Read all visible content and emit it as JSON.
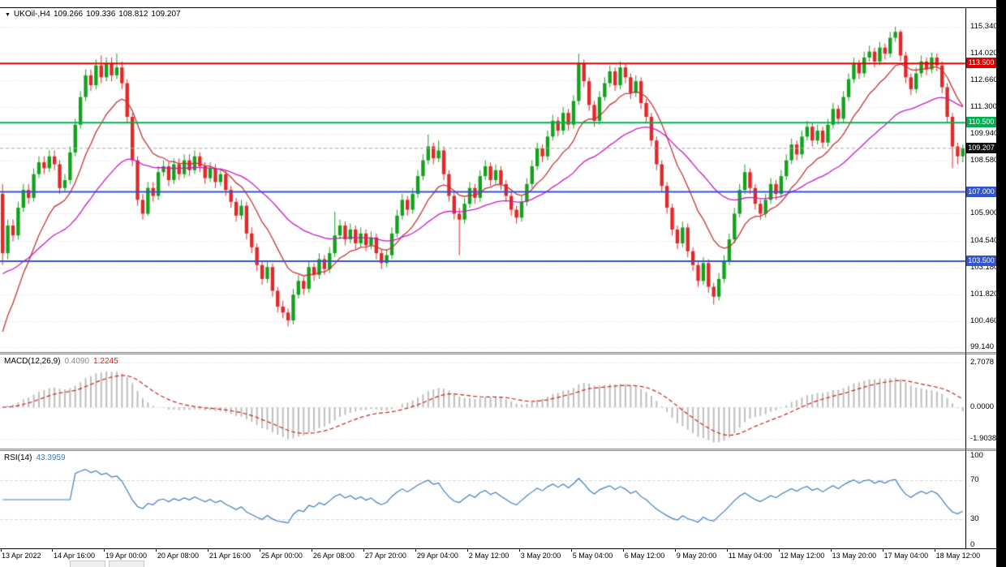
{
  "header": {
    "symbol_label": "UKOil-,H4",
    "ohlc": {
      "open": "109.266",
      "high": "109.336",
      "low": "108.812",
      "close": "109.207"
    }
  },
  "panel_labels": {
    "macd_label": "MACD(12,26,9)",
    "macd_main": "0.4090",
    "macd_signal": "1.2245",
    "rsi_label": "RSI(14)",
    "rsi_value": "43.3959"
  },
  "colors": {
    "candle_up": "#12a31c",
    "candle_down": "#e22828",
    "grid": "#d6d6d6",
    "macd_hist": "#bdbdbd",
    "macd_signal": "#cc2222",
    "rsi_line": "#3f7cc0",
    "current_badge": "#101010",
    "current_line": "#a8a8a8"
  },
  "chart_data": {
    "type": "candlestick",
    "symbol": "UKOil-",
    "timeframe": "H4",
    "price_axis": {
      "min": 98.9,
      "max": 116.3,
      "values": [
        115.34,
        114.02,
        112.66,
        111.3,
        109.94,
        108.58,
        105.9,
        104.54,
        103.18,
        101.82,
        100.46,
        99.14
      ],
      "labels": [
        "115.340",
        "114.020",
        "112.660",
        "111.300",
        "109.940",
        "108.580",
        "105.900",
        "104.540",
        "103.180",
        "101.820",
        "100.460",
        "99.140"
      ]
    },
    "extra_gridlines": [
      107.22
    ],
    "hlines": [
      {
        "price": 113.5,
        "color": "#e00000",
        "label": "113.500"
      },
      {
        "price": 110.5,
        "color": "#00b050",
        "label": "110.500"
      },
      {
        "price": 107.0,
        "color": "#3355cc",
        "label": "107.000"
      },
      {
        "price": 103.5,
        "color": "#3355cc",
        "label": "103.500"
      }
    ],
    "current_price": 109.207,
    "current_price_label": "109.207",
    "moving_averages": [
      {
        "period": 12,
        "seed": 99.2,
        "color": "#c83232"
      },
      {
        "period": 35,
        "seed": 102.8,
        "color": "#c818c8"
      }
    ],
    "macd": {
      "fast": 12,
      "slow": 26,
      "signal_period": 9,
      "axis": {
        "values": [
          2.7078,
          0,
          -1.9038
        ],
        "labels": [
          "2.7078",
          "0.0000",
          "-1.9038"
        ],
        "range": [
          -2.5,
          3.2
        ]
      }
    },
    "rsi": {
      "period": 14,
      "axis": {
        "values": [
          100,
          70,
          30,
          0
        ],
        "labels": [
          "100",
          "70",
          "30",
          "0"
        ],
        "levels": [
          70,
          30
        ]
      }
    },
    "time_axis": {
      "label_step": 10,
      "labels": [
        "13 Apr 2022",
        "14 Apr 16:00",
        "19 Apr 00:00",
        "20 Apr 08:00",
        "21 Apr 16:00",
        "25 Apr 00:00",
        "26 Apr 08:00",
        "27 Apr 20:00",
        "29 Apr 04:00",
        "2 May 12:00",
        "3 May 20:00",
        "5 May 04:00",
        "6 May 12:00",
        "9 May 20:00",
        "11 May 04:00",
        "12 May 12:00",
        "13 May 20:00",
        "17 May 04:00",
        "18 May 12:00"
      ]
    },
    "candles": [
      [
        106.9,
        107.4,
        103.3,
        103.9
      ],
      [
        103.9,
        105.6,
        103.6,
        105.3
      ],
      [
        105.3,
        105.6,
        104.5,
        104.8
      ],
      [
        104.8,
        106.5,
        104.6,
        106.2
      ],
      [
        106.2,
        107.4,
        106.0,
        107.1
      ],
      [
        107.1,
        107.4,
        106.4,
        106.7
      ],
      [
        106.7,
        108.2,
        106.5,
        107.9
      ],
      [
        107.9,
        108.8,
        107.7,
        108.5
      ],
      [
        108.5,
        108.8,
        107.9,
        108.2
      ],
      [
        108.2,
        109.1,
        108.0,
        108.8
      ],
      [
        108.8,
        109.1,
        108.1,
        108.4
      ],
      [
        108.4,
        108.6,
        106.9,
        107.2
      ],
      [
        107.2,
        107.9,
        107.0,
        107.6
      ],
      [
        107.6,
        109.3,
        107.4,
        109.0
      ],
      [
        109.0,
        110.7,
        108.8,
        110.4
      ],
      [
        110.4,
        112.1,
        110.2,
        111.8
      ],
      [
        111.8,
        113.2,
        111.6,
        112.9
      ],
      [
        112.9,
        113.2,
        112.1,
        112.4
      ],
      [
        112.4,
        113.7,
        112.2,
        113.4
      ],
      [
        113.4,
        113.9,
        112.5,
        112.8
      ],
      [
        112.8,
        113.8,
        112.6,
        113.5
      ],
      [
        113.5,
        113.8,
        112.6,
        112.9
      ],
      [
        112.9,
        114.0,
        112.7,
        113.3
      ],
      [
        113.3,
        113.6,
        112.2,
        112.5
      ],
      [
        112.5,
        112.7,
        110.5,
        110.8
      ],
      [
        110.8,
        111.0,
        108.3,
        108.6
      ],
      [
        108.6,
        108.8,
        106.3,
        106.6
      ],
      [
        106.6,
        106.9,
        105.6,
        105.9
      ],
      [
        105.9,
        107.5,
        105.8,
        107.2
      ],
      [
        107.2,
        107.5,
        106.5,
        106.8
      ],
      [
        106.8,
        108.3,
        106.6,
        108.0
      ],
      [
        108.0,
        108.6,
        107.8,
        108.3
      ],
      [
        108.3,
        108.5,
        107.3,
        107.6
      ],
      [
        107.6,
        108.7,
        107.4,
        108.4
      ],
      [
        108.4,
        108.7,
        107.6,
        107.9
      ],
      [
        107.9,
        108.9,
        107.7,
        108.6
      ],
      [
        108.6,
        108.9,
        107.8,
        108.1
      ],
      [
        108.1,
        109.1,
        107.9,
        108.8
      ],
      [
        108.8,
        109.0,
        108.0,
        108.3
      ],
      [
        108.3,
        108.5,
        107.4,
        107.7
      ],
      [
        107.7,
        108.5,
        107.5,
        108.2
      ],
      [
        108.2,
        108.4,
        107.2,
        107.5
      ],
      [
        107.5,
        108.2,
        107.3,
        107.9
      ],
      [
        107.9,
        108.1,
        106.8,
        107.1
      ],
      [
        107.1,
        107.3,
        106.2,
        106.5
      ],
      [
        106.5,
        106.7,
        105.5,
        105.8
      ],
      [
        105.8,
        106.6,
        105.6,
        106.3
      ],
      [
        106.3,
        106.5,
        104.6,
        104.9
      ],
      [
        104.9,
        105.2,
        103.9,
        104.2
      ],
      [
        104.2,
        104.4,
        103.0,
        103.3
      ],
      [
        103.3,
        103.5,
        102.3,
        102.6
      ],
      [
        102.6,
        103.5,
        102.4,
        103.2
      ],
      [
        103.2,
        103.4,
        101.7,
        102.0
      ],
      [
        102.0,
        102.2,
        100.9,
        101.2
      ],
      [
        101.2,
        101.5,
        100.6,
        100.9
      ],
      [
        100.9,
        101.1,
        100.2,
        100.5
      ],
      [
        100.5,
        102.1,
        100.3,
        101.8
      ],
      [
        101.8,
        102.8,
        101.6,
        102.5
      ],
      [
        102.5,
        102.7,
        101.8,
        102.1
      ],
      [
        102.1,
        103.5,
        101.9,
        103.2
      ],
      [
        103.2,
        103.4,
        102.5,
        102.8
      ],
      [
        102.8,
        103.9,
        102.6,
        103.6
      ],
      [
        103.6,
        103.8,
        102.8,
        103.1
      ],
      [
        103.1,
        104.2,
        102.9,
        103.9
      ],
      [
        103.9,
        106.0,
        103.7,
        104.8
      ],
      [
        104.8,
        105.6,
        104.6,
        105.3
      ],
      [
        105.3,
        105.5,
        104.3,
        104.6
      ],
      [
        104.6,
        105.4,
        104.4,
        105.1
      ],
      [
        105.1,
        105.3,
        104.1,
        104.4
      ],
      [
        104.4,
        105.2,
        104.2,
        104.9
      ],
      [
        104.9,
        105.1,
        104.0,
        104.3
      ],
      [
        104.3,
        105.0,
        104.1,
        104.7
      ],
      [
        104.7,
        104.9,
        103.6,
        103.9
      ],
      [
        103.9,
        104.1,
        103.1,
        103.4
      ],
      [
        103.4,
        104.1,
        103.2,
        103.8
      ],
      [
        103.8,
        105.2,
        103.6,
        104.9
      ],
      [
        104.9,
        106.1,
        104.7,
        105.8
      ],
      [
        105.8,
        106.9,
        105.6,
        106.6
      ],
      [
        106.6,
        106.8,
        105.8,
        106.1
      ],
      [
        106.1,
        107.2,
        105.9,
        106.9
      ],
      [
        106.9,
        108.1,
        106.7,
        107.8
      ],
      [
        107.8,
        108.9,
        107.6,
        108.6
      ],
      [
        108.6,
        109.9,
        108.4,
        109.3
      ],
      [
        109.3,
        109.5,
        108.4,
        108.7
      ],
      [
        108.7,
        109.6,
        108.5,
        109.1
      ],
      [
        109.1,
        109.3,
        107.6,
        107.9
      ],
      [
        107.9,
        108.1,
        106.5,
        106.8
      ],
      [
        106.8,
        107.0,
        105.6,
        105.9
      ],
      [
        105.9,
        106.2,
        103.8,
        105.6
      ],
      [
        105.6,
        106.7,
        105.4,
        106.4
      ],
      [
        106.4,
        107.5,
        106.2,
        107.2
      ],
      [
        107.2,
        107.4,
        106.4,
        106.7
      ],
      [
        106.7,
        108.1,
        106.5,
        107.8
      ],
      [
        107.8,
        108.6,
        107.6,
        108.3
      ],
      [
        108.3,
        108.5,
        107.3,
        107.6
      ],
      [
        107.6,
        108.4,
        107.4,
        108.1
      ],
      [
        108.1,
        108.3,
        107.1,
        107.4
      ],
      [
        107.4,
        107.6,
        106.5,
        106.8
      ],
      [
        106.8,
        107.0,
        105.8,
        106.1
      ],
      [
        106.1,
        106.3,
        105.4,
        105.7
      ],
      [
        105.7,
        106.8,
        105.5,
        106.5
      ],
      [
        106.5,
        107.7,
        106.3,
        107.4
      ],
      [
        107.4,
        108.6,
        107.2,
        108.3
      ],
      [
        108.3,
        109.5,
        108.1,
        109.2
      ],
      [
        109.2,
        109.4,
        108.5,
        108.8
      ],
      [
        108.8,
        110.1,
        108.6,
        109.8
      ],
      [
        109.8,
        110.9,
        109.6,
        110.6
      ],
      [
        110.6,
        110.8,
        109.8,
        110.1
      ],
      [
        110.1,
        111.3,
        109.9,
        111.0
      ],
      [
        111.0,
        111.2,
        110.1,
        110.4
      ],
      [
        110.4,
        111.9,
        110.2,
        111.6
      ],
      [
        111.6,
        114.0,
        111.4,
        113.5
      ],
      [
        113.5,
        113.7,
        112.3,
        112.6
      ],
      [
        112.6,
        112.8,
        111.1,
        111.4
      ],
      [
        111.4,
        111.6,
        110.3,
        110.6
      ],
      [
        110.6,
        112.1,
        110.4,
        111.8
      ],
      [
        111.8,
        112.8,
        111.6,
        112.5
      ],
      [
        112.5,
        113.4,
        112.3,
        113.1
      ],
      [
        113.1,
        113.3,
        112.1,
        112.4
      ],
      [
        112.4,
        113.6,
        112.2,
        113.3
      ],
      [
        113.3,
        113.5,
        112.5,
        112.8
      ],
      [
        112.8,
        113.0,
        111.7,
        112.0
      ],
      [
        112.0,
        112.9,
        111.8,
        112.6
      ],
      [
        112.6,
        112.8,
        111.2,
        111.5
      ],
      [
        111.5,
        111.7,
        110.5,
        110.8
      ],
      [
        110.8,
        111.0,
        109.3,
        109.6
      ],
      [
        109.6,
        109.8,
        108.1,
        108.4
      ],
      [
        108.4,
        108.6,
        107.0,
        107.3
      ],
      [
        107.3,
        107.5,
        105.9,
        106.2
      ],
      [
        106.2,
        106.4,
        104.8,
        105.1
      ],
      [
        105.1,
        105.3,
        104.1,
        104.4
      ],
      [
        104.4,
        105.5,
        104.2,
        105.2
      ],
      [
        105.2,
        105.4,
        103.7,
        104.0
      ],
      [
        104.0,
        104.2,
        103.0,
        103.3
      ],
      [
        103.3,
        103.5,
        102.2,
        102.5
      ],
      [
        102.5,
        103.7,
        102.3,
        103.4
      ],
      [
        103.4,
        103.6,
        101.9,
        102.2
      ],
      [
        102.2,
        102.4,
        101.3,
        101.7
      ],
      [
        101.7,
        102.9,
        101.5,
        102.6
      ],
      [
        102.6,
        103.8,
        102.4,
        103.5
      ],
      [
        103.5,
        104.9,
        103.3,
        104.6
      ],
      [
        104.6,
        106.2,
        104.4,
        105.9
      ],
      [
        105.9,
        107.4,
        105.7,
        107.1
      ],
      [
        107.1,
        108.4,
        106.9,
        108.0
      ],
      [
        108.0,
        108.2,
        106.9,
        107.2
      ],
      [
        107.2,
        107.4,
        106.1,
        106.4
      ],
      [
        106.4,
        106.6,
        105.6,
        105.9
      ],
      [
        105.9,
        106.9,
        105.7,
        106.6
      ],
      [
        106.6,
        107.7,
        106.4,
        107.4
      ],
      [
        107.4,
        107.6,
        106.6,
        106.9
      ],
      [
        106.9,
        108.1,
        106.7,
        107.8
      ],
      [
        107.8,
        108.9,
        107.6,
        108.6
      ],
      [
        108.6,
        109.7,
        108.4,
        109.4
      ],
      [
        109.4,
        109.6,
        108.6,
        108.9
      ],
      [
        108.9,
        110.1,
        108.7,
        109.8
      ],
      [
        109.8,
        110.6,
        109.6,
        110.3
      ],
      [
        110.3,
        110.5,
        109.3,
        109.6
      ],
      [
        109.6,
        110.4,
        109.4,
        110.1
      ],
      [
        110.1,
        110.3,
        109.2,
        109.5
      ],
      [
        109.5,
        110.7,
        109.3,
        110.4
      ],
      [
        110.4,
        111.5,
        110.2,
        111.2
      ],
      [
        111.2,
        111.4,
        110.4,
        110.7
      ],
      [
        110.7,
        112.1,
        110.5,
        111.8
      ],
      [
        111.8,
        113.0,
        111.6,
        112.7
      ],
      [
        112.7,
        113.8,
        112.5,
        113.5
      ],
      [
        113.5,
        113.7,
        112.7,
        113.0
      ],
      [
        113.0,
        114.1,
        112.8,
        113.8
      ],
      [
        113.8,
        114.4,
        113.6,
        114.1
      ],
      [
        114.1,
        114.3,
        113.3,
        113.6
      ],
      [
        113.6,
        114.6,
        113.4,
        114.3
      ],
      [
        114.3,
        114.5,
        113.7,
        114.0
      ],
      [
        114.0,
        115.1,
        113.8,
        114.8
      ],
      [
        114.8,
        115.35,
        114.6,
        115.1
      ],
      [
        115.1,
        115.2,
        113.6,
        113.9
      ],
      [
        113.9,
        114.1,
        112.5,
        112.8
      ],
      [
        112.8,
        113.0,
        111.9,
        112.2
      ],
      [
        112.2,
        113.3,
        112.0,
        113.0
      ],
      [
        113.0,
        113.9,
        112.8,
        113.6
      ],
      [
        113.6,
        113.8,
        112.9,
        113.2
      ],
      [
        113.2,
        114.05,
        113.0,
        113.8
      ],
      [
        113.8,
        114.0,
        113.1,
        113.4
      ],
      [
        113.4,
        113.6,
        112.0,
        112.3
      ],
      [
        112.3,
        112.5,
        110.5,
        110.8
      ],
      [
        110.8,
        111.0,
        108.2,
        109.3
      ],
      [
        109.3,
        109.5,
        108.4,
        108.8
      ],
      [
        108.8,
        109.4,
        108.5,
        109.21
      ]
    ]
  }
}
